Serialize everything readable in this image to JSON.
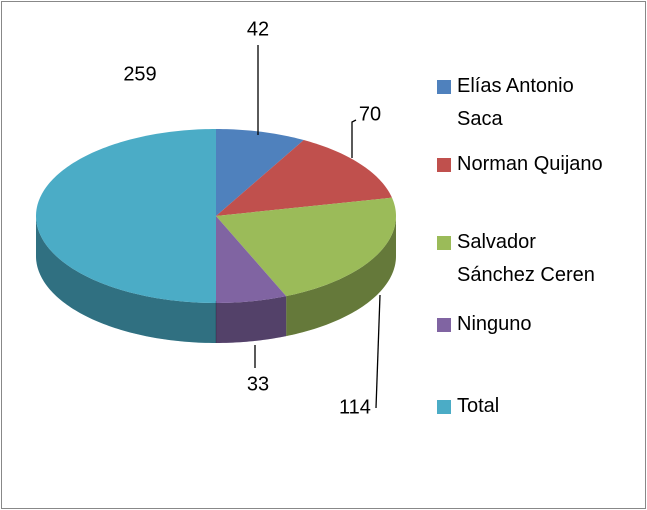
{
  "chart_data": {
    "type": "pie3d",
    "categories": [
      "Elías Antonio Saca",
      "Norman Quijano",
      "Salvador Sánchez Ceren",
      "Ninguno",
      "Total"
    ],
    "values": [
      42,
      70,
      114,
      33,
      259
    ],
    "colors": [
      "#4f81bd",
      "#c0504d",
      "#9bbb59",
      "#8064a2",
      "#4bacc6"
    ],
    "legend": "right"
  }
}
